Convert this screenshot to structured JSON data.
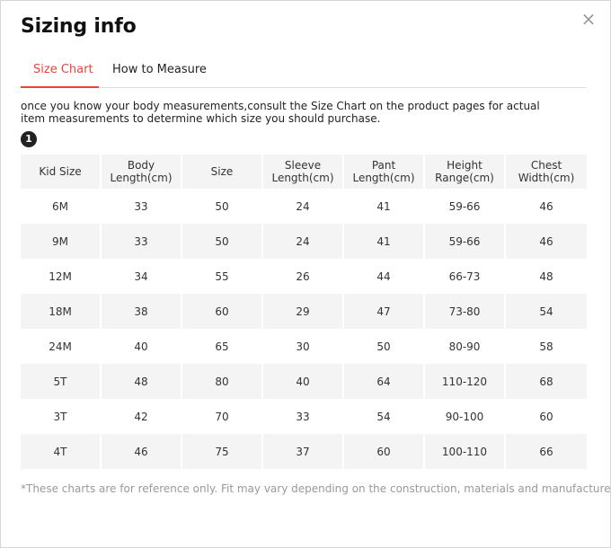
{
  "dialog": {
    "title": "Sizing info",
    "close_glyph": "×"
  },
  "tabs": [
    {
      "label": "Size Chart",
      "active": true
    },
    {
      "label": "How to Measure",
      "active": false
    }
  ],
  "intro_text": "once you know your body measurements,consult the Size Chart on the product pages for actual item measurements to determine which size you should purchase.",
  "badge_number": "1",
  "table": {
    "headers": [
      [
        "Kid Size"
      ],
      [
        "Body",
        "Length(cm)"
      ],
      [
        "Size"
      ],
      [
        "Sleeve",
        "Length(cm)"
      ],
      [
        "Pant",
        "Length(cm)"
      ],
      [
        "Height",
        "Range(cm)"
      ],
      [
        "Chest",
        "Width(cm)"
      ]
    ],
    "rows": [
      [
        "6M",
        "33",
        "50",
        "24",
        "41",
        "59-66",
        "46"
      ],
      [
        "9M",
        "33",
        "50",
        "24",
        "41",
        "59-66",
        "46"
      ],
      [
        "12M",
        "34",
        "55",
        "26",
        "44",
        "66-73",
        "48"
      ],
      [
        "18M",
        "38",
        "60",
        "29",
        "47",
        "73-80",
        "54"
      ],
      [
        "24M",
        "40",
        "65",
        "30",
        "50",
        "80-90",
        "58"
      ],
      [
        "5T",
        "48",
        "80",
        "40",
        "64",
        "110-120",
        "68"
      ],
      [
        "3T",
        "42",
        "70",
        "33",
        "54",
        "90-100",
        "60"
      ],
      [
        "4T",
        "46",
        "75",
        "37",
        "60",
        "100-110",
        "66"
      ]
    ]
  },
  "footnote": "*These charts are for reference only. Fit may vary depending on the construction, materials and manufacturer.",
  "colors": {
    "accent": "#e8443a",
    "row_shade": "#f4f4f4",
    "muted_text": "#999999"
  }
}
